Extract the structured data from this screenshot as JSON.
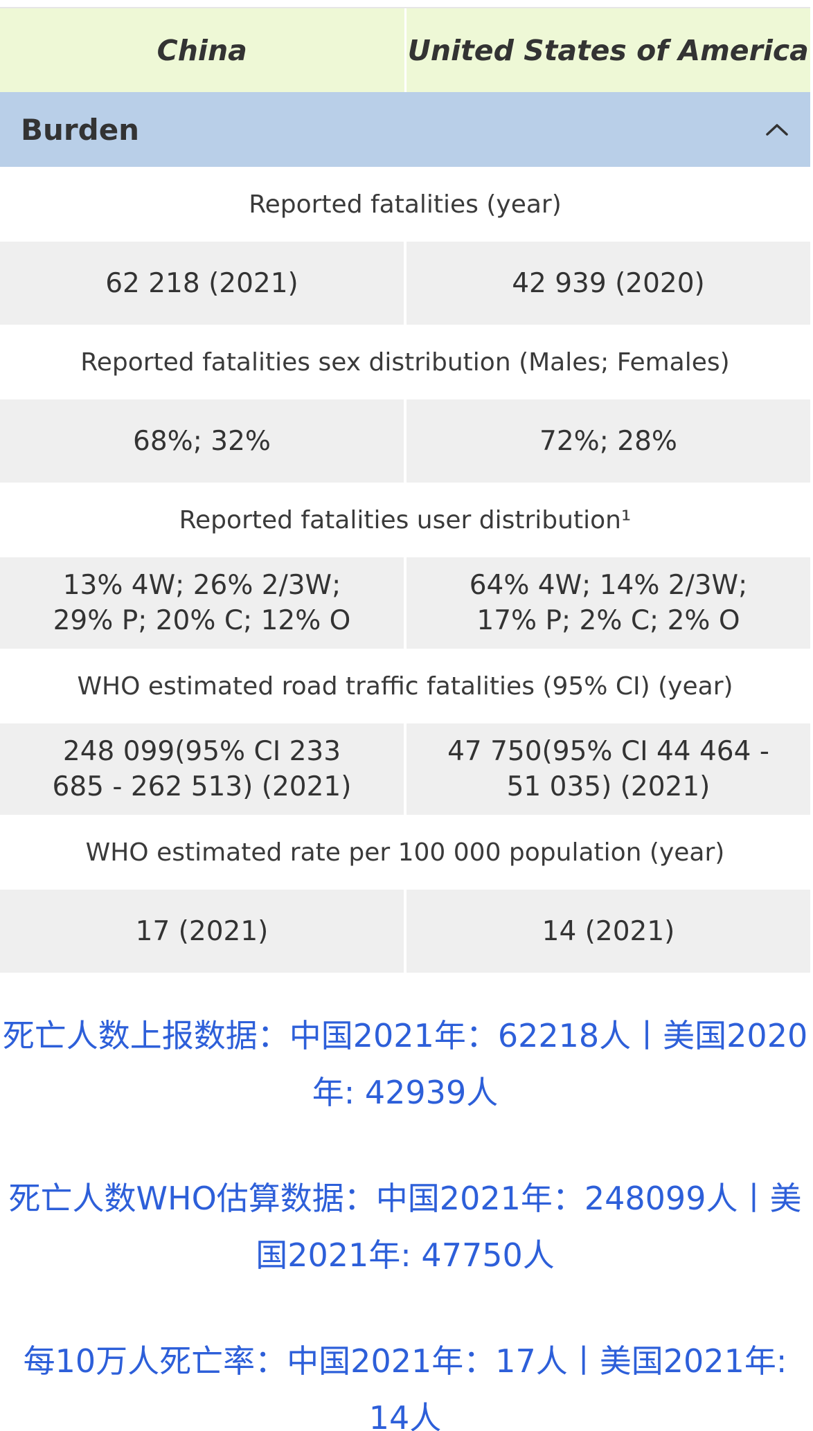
{
  "header": {
    "country_left": "China",
    "country_right": "United States of America"
  },
  "section": {
    "title": "Burden"
  },
  "rows": [
    {
      "label": "Reported  fatalities (year)",
      "china": "62 218 (2021)",
      "usa": "42 939 (2020)"
    },
    {
      "label": "Reported fatalities sex distribution (Males; Females)",
      "china": "68%; 32%",
      "usa": "72%; 28%"
    },
    {
      "label": "Reported fatalities user distribution¹",
      "china": "13% 4W; 26% 2/3W;\n29% P; 20% C; 12% O",
      "usa": "64% 4W; 14% 2/3W;\n17% P; 2% C; 2% O"
    },
    {
      "label": "WHO estimated road traffic fatalities (95% CI) (year)",
      "china": "248 099(95% CI 233\n685 - 262 513) (2021)",
      "usa": "47 750(95% CI 44 464 -\n51 035) (2021)"
    },
    {
      "label": "WHO estimated rate per 100 000 population (year)",
      "china": "17 (2021)",
      "usa": "14 (2021)"
    }
  ],
  "summary": {
    "line1": "死亡人数上报数据：中国2021年：62218人丨美国2020年: 42939人",
    "line2": "死亡人数WHO估算数据：中国2021年：248099人丨美国2021年: 47750人",
    "line3": "每10万人死亡率：中国2021年：17人丨美国2021年: 14人"
  },
  "colors": {
    "header_bg": "#eef8d6",
    "section_bg": "#b9cfe8",
    "value_bg": "#efefef",
    "summary_text": "#2d5fd9"
  },
  "icons": {
    "section_toggle": "chevron-up-icon"
  }
}
